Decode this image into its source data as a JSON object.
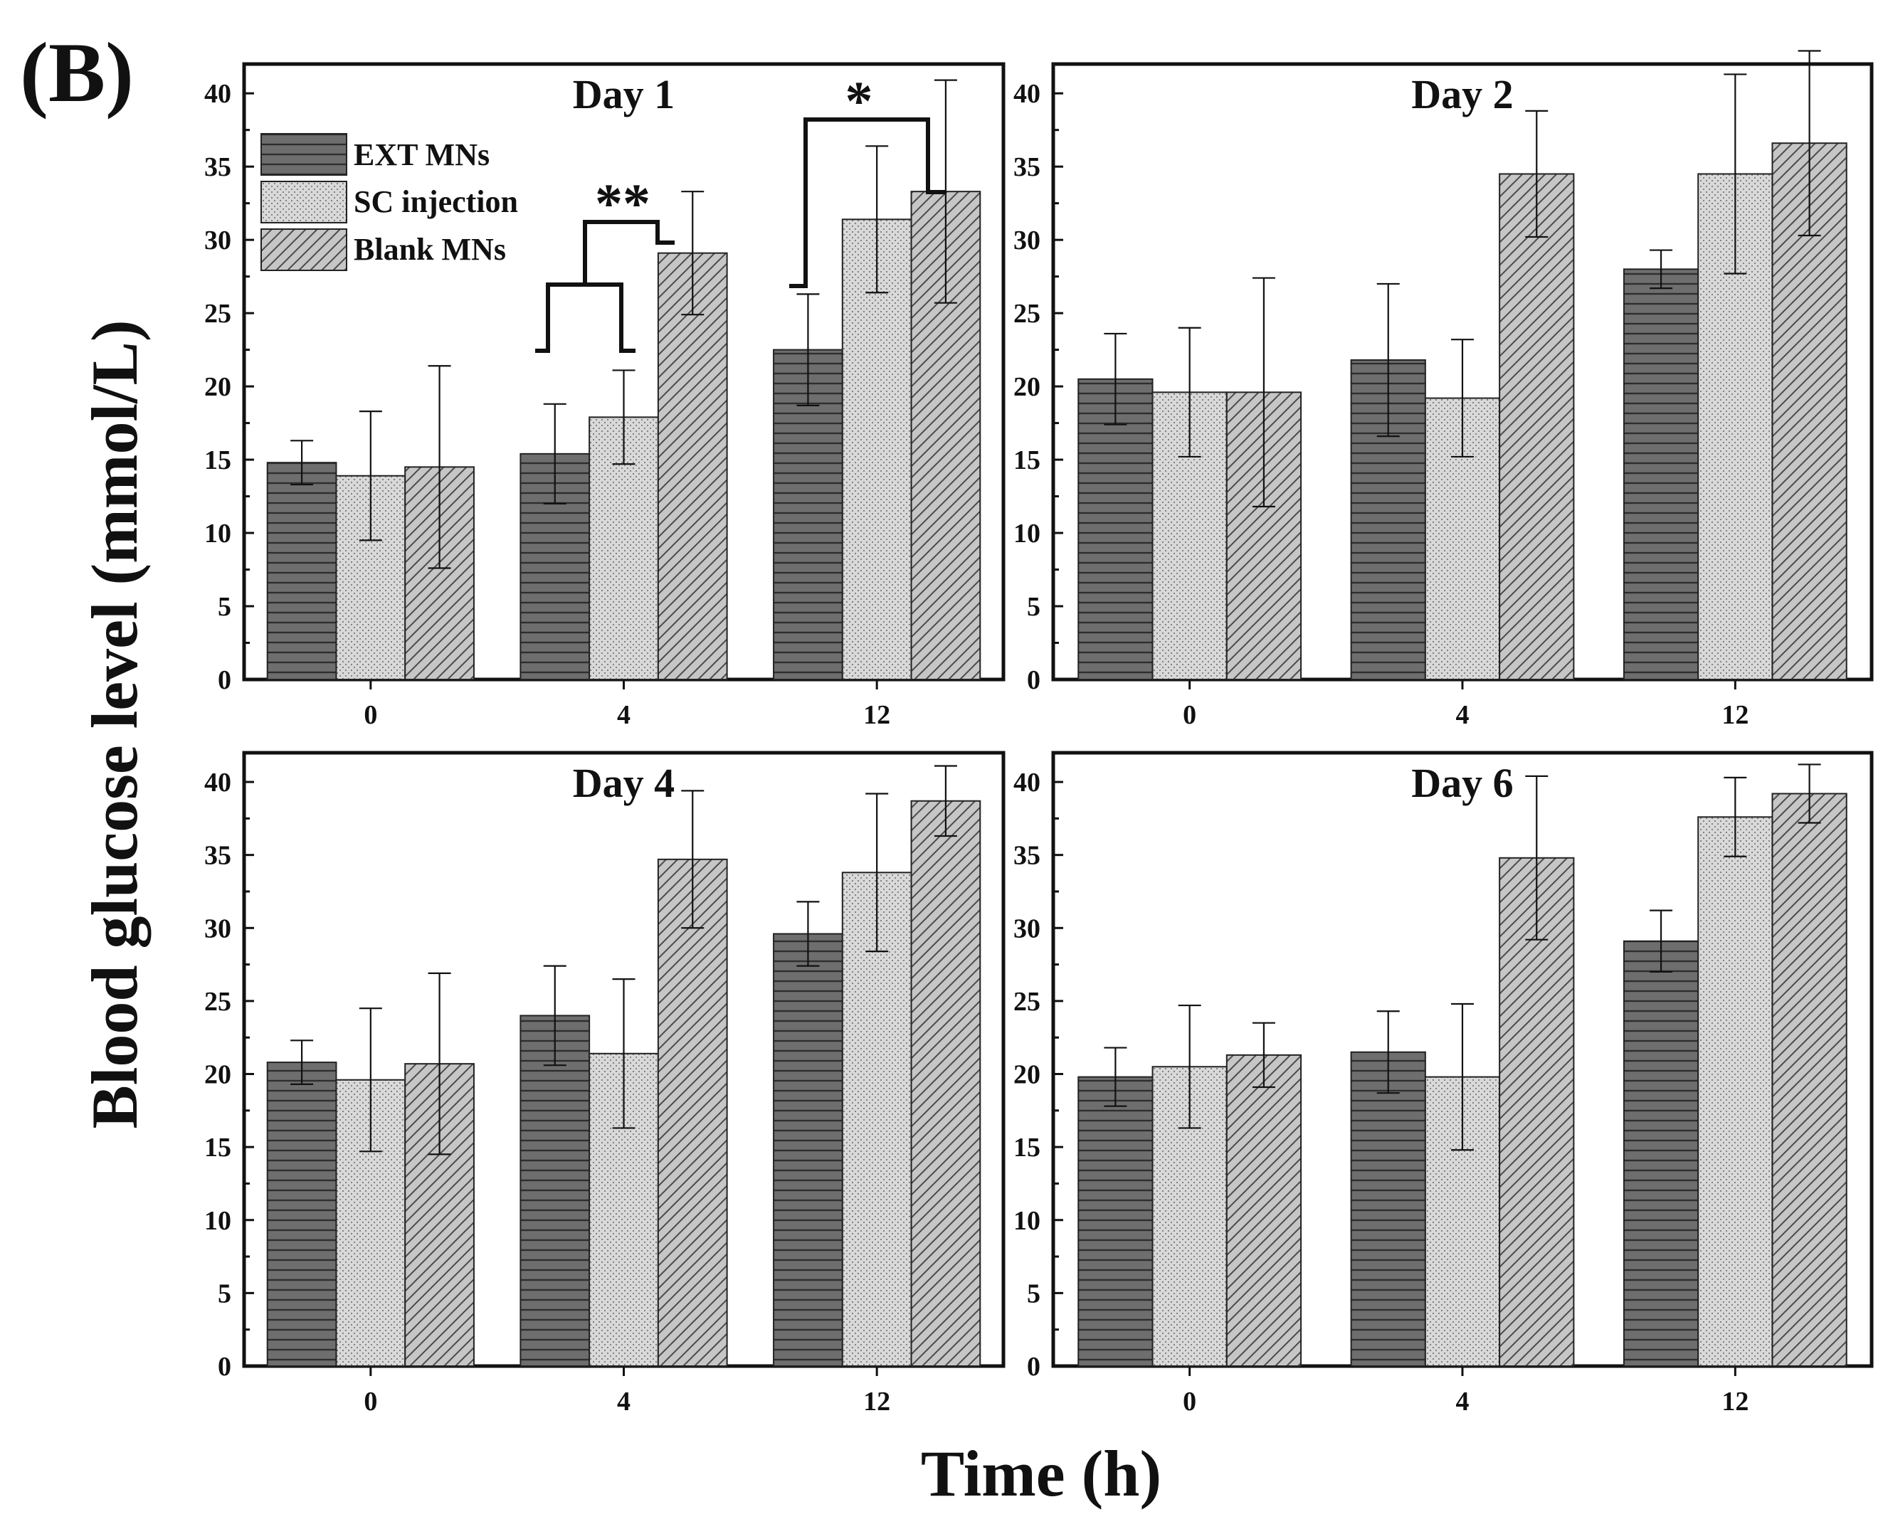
{
  "figure": {
    "panel_label": "(B)",
    "ylabel": "Blood glucose level (mmol/L)",
    "xlabel": "Time (h)"
  },
  "legend": [
    {
      "name": "EXT MNs",
      "pattern": "horizontal"
    },
    {
      "name": "SC injection",
      "pattern": "dots"
    },
    {
      "name": "Blank MNs",
      "pattern": "diagonal"
    }
  ],
  "colors": {
    "ext": "#6e6e6e",
    "sc": "#d6d6d6",
    "blank": "#c4c4c4",
    "frame": "#111111"
  },
  "chart_data": [
    {
      "type": "bar",
      "title": "Day 1",
      "categories": [
        "0",
        "4",
        "12"
      ],
      "ylim": [
        0,
        42
      ],
      "yticks": [
        "0",
        "5",
        "10",
        "15",
        "20",
        "25",
        "30",
        "35",
        "40"
      ],
      "series": [
        {
          "name": "EXT MNs",
          "values": [
            14.8,
            15.4,
            22.5
          ],
          "errors": [
            1.5,
            3.4,
            3.8
          ]
        },
        {
          "name": "SC injection",
          "values": [
            13.9,
            17.9,
            31.4
          ],
          "errors": [
            4.4,
            3.2,
            5.0
          ]
        },
        {
          "name": "Blank MNs",
          "values": [
            14.5,
            29.1,
            33.3
          ],
          "errors": [
            6.9,
            4.2,
            7.6
          ]
        }
      ],
      "annotations": [
        {
          "label": "**",
          "between": "EXT MNs and SC injection vs Blank MNs",
          "category": "4"
        },
        {
          "label": "*",
          "between": "EXT MNs vs Blank MNs",
          "category": "12"
        }
      ]
    },
    {
      "type": "bar",
      "title": "Day 2",
      "categories": [
        "0",
        "4",
        "12"
      ],
      "ylim": [
        0,
        42
      ],
      "yticks": [
        "0",
        "5",
        "10",
        "15",
        "20",
        "25",
        "30",
        "35",
        "40"
      ],
      "series": [
        {
          "name": "EXT MNs",
          "values": [
            20.5,
            21.8,
            28.0
          ],
          "errors": [
            3.1,
            5.2,
            1.3
          ]
        },
        {
          "name": "SC injection",
          "values": [
            19.6,
            19.2,
            34.5
          ],
          "errors": [
            4.4,
            4.0,
            6.8
          ]
        },
        {
          "name": "Blank MNs",
          "values": [
            19.6,
            34.5,
            36.6
          ],
          "errors": [
            7.8,
            4.3,
            6.3
          ]
        }
      ]
    },
    {
      "type": "bar",
      "title": "Day 4",
      "categories": [
        "0",
        "4",
        "12"
      ],
      "ylim": [
        0,
        42
      ],
      "yticks": [
        "0",
        "5",
        "10",
        "15",
        "20",
        "25",
        "30",
        "35",
        "40"
      ],
      "series": [
        {
          "name": "EXT MNs",
          "values": [
            20.8,
            24.0,
            29.6
          ],
          "errors": [
            1.5,
            3.4,
            2.2
          ]
        },
        {
          "name": "SC injection",
          "values": [
            19.6,
            21.4,
            33.8
          ],
          "errors": [
            4.9,
            5.1,
            5.4
          ]
        },
        {
          "name": "Blank MNs",
          "values": [
            20.7,
            34.7,
            38.7
          ],
          "errors": [
            6.2,
            4.7,
            2.4
          ]
        }
      ]
    },
    {
      "type": "bar",
      "title": "Day 6",
      "categories": [
        "0",
        "4",
        "12"
      ],
      "ylim": [
        0,
        42
      ],
      "yticks": [
        "0",
        "5",
        "10",
        "15",
        "20",
        "25",
        "30",
        "35",
        "40"
      ],
      "series": [
        {
          "name": "EXT MNs",
          "values": [
            19.8,
            21.5,
            29.1
          ],
          "errors": [
            2.0,
            2.8,
            2.1
          ]
        },
        {
          "name": "SC injection",
          "values": [
            20.5,
            19.8,
            37.6
          ],
          "errors": [
            4.2,
            5.0,
            2.7
          ]
        },
        {
          "name": "Blank MNs",
          "values": [
            21.3,
            34.8,
            39.2
          ],
          "errors": [
            2.2,
            5.6,
            2.0
          ]
        }
      ]
    }
  ]
}
